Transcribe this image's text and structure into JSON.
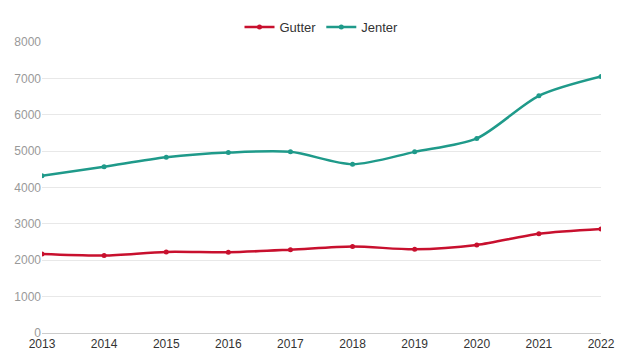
{
  "chart_data": {
    "type": "line",
    "x": [
      2013,
      2014,
      2015,
      2016,
      2017,
      2018,
      2019,
      2020,
      2021,
      2022
    ],
    "series": [
      {
        "name": "Gutter",
        "color": "#c8102e",
        "values": [
          2170,
          2130,
          2230,
          2220,
          2290,
          2380,
          2300,
          2420,
          2730,
          2860
        ]
      },
      {
        "name": "Jenter",
        "color": "#1f9a8a",
        "values": [
          4320,
          4570,
          4830,
          4960,
          4980,
          4640,
          4980,
          5350,
          6520,
          7050
        ]
      }
    ],
    "xlim": [
      2013,
      2022
    ],
    "xticks": [
      2013,
      2014,
      2015,
      2016,
      2017,
      2018,
      2019,
      2020,
      2021,
      2022
    ],
    "ylim": [
      0,
      8000
    ],
    "yticks": [
      0,
      1000,
      2000,
      3000,
      4000,
      5000,
      6000,
      7000,
      8000
    ],
    "grid": true,
    "legend": "top",
    "marker": "circle",
    "line_style": "solid"
  }
}
